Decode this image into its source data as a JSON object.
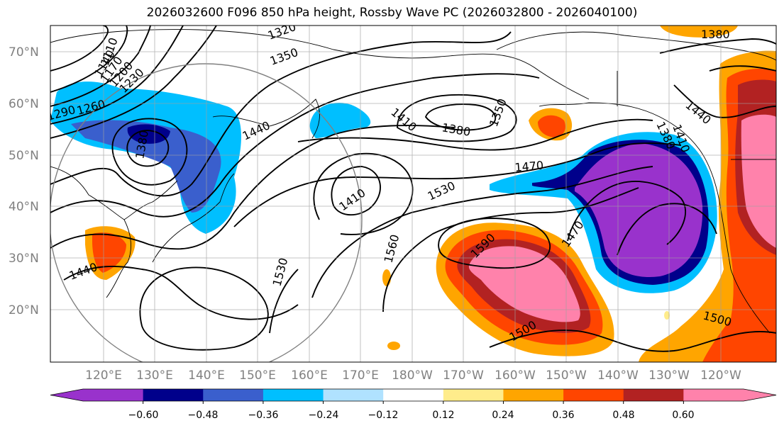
{
  "title": "2026032600 F096 850 hPa height, Rossby Wave PC (2026032800 - 2026040100)",
  "lat_ticks": [
    "70°N",
    "60°N",
    "50°N",
    "40°N",
    "30°N",
    "20°N"
  ],
  "lon_ticks": [
    "120°E",
    "130°E",
    "140°E",
    "150°E",
    "160°E",
    "170°E",
    "180°W",
    "170°W",
    "160°W",
    "150°W",
    "140°W",
    "130°W",
    "120°W"
  ],
  "contour_labels": [
    "1320",
    "1350",
    "1110",
    "1140",
    "1170",
    "1200",
    "1230",
    "1290",
    "1260",
    "1380",
    "1440",
    "1410",
    "1380",
    "1350",
    "1470",
    "1530",
    "1410",
    "1560",
    "1590",
    "1470",
    "1500",
    "1500",
    "1530",
    "1440",
    "1380",
    "1440",
    "1410",
    "1380"
  ],
  "colorbar": {
    "colors": [
      "#9932CC",
      "#00008B",
      "#3A5FCD",
      "#00BFFF",
      "#B0E2FF",
      "#FFFFFF",
      "#FFEC8B",
      "#FFA500",
      "#FF4500",
      "#B22222",
      "#FF82AB"
    ],
    "tick_labels": [
      "−0.60",
      "−0.48",
      "−0.36",
      "−0.24",
      "−0.12",
      "0.12",
      "0.24",
      "0.36",
      "0.48",
      "0.60"
    ]
  }
}
